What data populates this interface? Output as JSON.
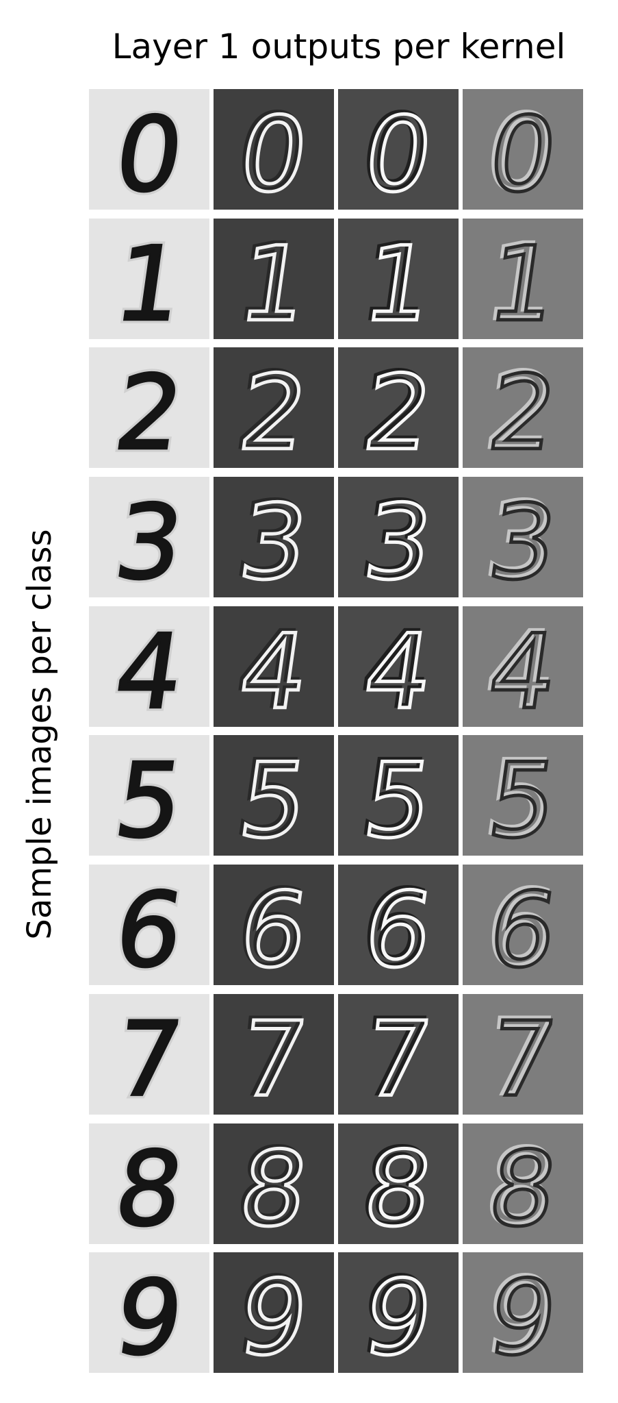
{
  "title": "Layer 1 outputs per kernel",
  "ylabel": "Sample images per class",
  "rows": [
    {
      "digit": "0"
    },
    {
      "digit": "1"
    },
    {
      "digit": "2"
    },
    {
      "digit": "3"
    },
    {
      "digit": "4"
    },
    {
      "digit": "5"
    },
    {
      "digit": "6"
    },
    {
      "digit": "7"
    },
    {
      "digit": "8"
    },
    {
      "digit": "9"
    }
  ],
  "columns": [
    {
      "kind": "input",
      "background": "#e4e4e4",
      "stroke": "#151515",
      "highlight": "#bdbdbd"
    },
    {
      "kind": "kernel-1",
      "background": "#3f3f3f",
      "stroke": "#f2f2f2",
      "highlight": "#1f1f1f"
    },
    {
      "kind": "kernel-2",
      "background": "#4a4a4a",
      "stroke": "#f7f7f7",
      "highlight": "#0e0e0e"
    },
    {
      "kind": "kernel-3",
      "background": "#7d7d7d",
      "stroke": "#2a2a2a",
      "highlight": "#e6e6e6"
    }
  ]
}
